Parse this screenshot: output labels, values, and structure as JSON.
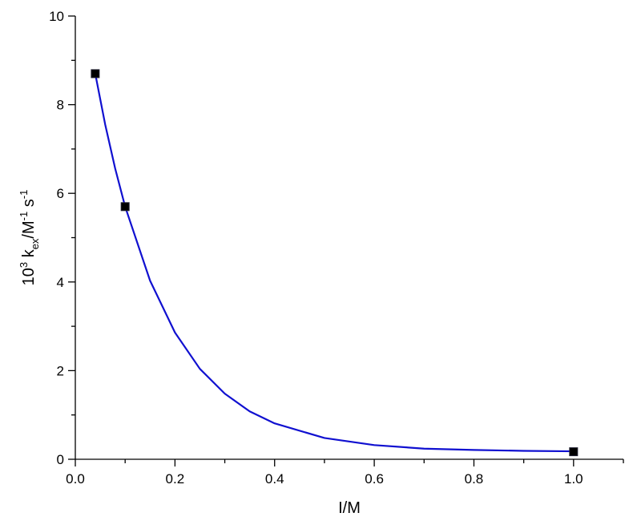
{
  "chart_data": {
    "type": "scatter",
    "xlabel": "I/M",
    "ylabel": [
      {
        "text": "10"
      },
      {
        "text": "3",
        "script": "super"
      },
      {
        "text": " k"
      },
      {
        "text": "ex",
        "script": "sub"
      },
      {
        "text": "/M"
      },
      {
        "text": "-1",
        "script": "super"
      },
      {
        "text": " s"
      },
      {
        "text": "-1",
        "script": "super"
      }
    ],
    "xlim": [
      0,
      1.1
    ],
    "ylim": [
      0,
      10
    ],
    "xticks": [
      {
        "value": 0,
        "label": "0.0"
      },
      0.2,
      0.4,
      0.6,
      0.8,
      {
        "value": 1,
        "label": "1.0"
      }
    ],
    "yticks": [
      0,
      2,
      4,
      6,
      8,
      10
    ],
    "xminor_ticks": [
      0.1,
      0.3,
      0.5,
      0.7,
      0.9,
      1.1
    ],
    "yminor_ticks": [
      1,
      3,
      5,
      7,
      9
    ],
    "grid": false,
    "series": [
      {
        "type": "scatter",
        "color": "#000000",
        "x": [
          0.04,
          0.1,
          1.0
        ],
        "values": [
          8.7,
          5.7,
          0.17
        ]
      },
      {
        "type": "line",
        "color": "#1010d0",
        "x": [
          0.04,
          0.06,
          0.08,
          0.1,
          0.15,
          0.2,
          0.25,
          0.3,
          0.35,
          0.4,
          0.5,
          0.6,
          0.7,
          0.8,
          0.9,
          1.0
        ],
        "values": [
          8.7,
          7.55,
          6.56,
          5.7,
          4.03,
          2.86,
          2.04,
          1.48,
          1.08,
          0.81,
          0.48,
          0.32,
          0.24,
          0.21,
          0.19,
          0.18
        ]
      }
    ]
  }
}
